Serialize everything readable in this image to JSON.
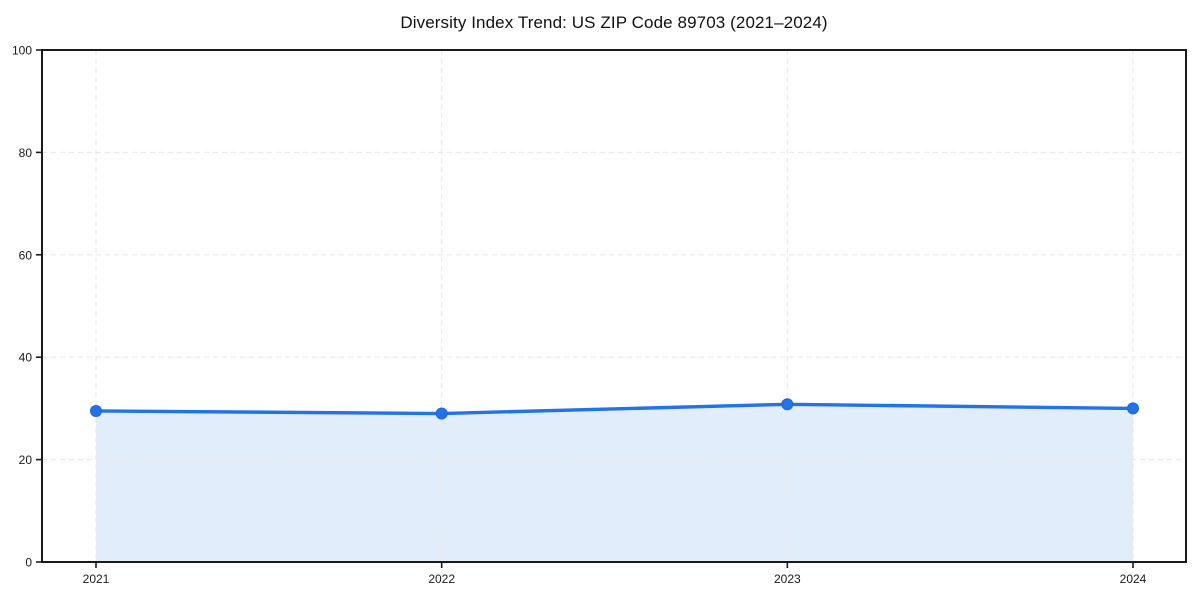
{
  "chart_data": {
    "type": "area",
    "title": "Diversity Index Trend: US ZIP Code 89703 (2021–2024)",
    "categories": [
      "2021",
      "2022",
      "2023",
      "2024"
    ],
    "series": [
      {
        "name": "Diversity Index",
        "values": [
          29.5,
          29.0,
          30.8,
          30.0
        ]
      }
    ],
    "xlabel": "",
    "ylabel": "",
    "ylim": [
      0,
      100
    ],
    "yticks": [
      0,
      20,
      40,
      60,
      80,
      100
    ],
    "grid": true,
    "grid_style": "dashed",
    "legend": false,
    "colors": {
      "line": "#2272e8",
      "marker": "#2272e8",
      "marker_edge": "#1c64d9",
      "area_fill": "rgba(34,114,232,0.13)",
      "gridline": "#e9e9e9",
      "spine": "#1a1a1a",
      "tick_label": "#1a1a1a",
      "title": "#111111",
      "plot_background": "#ffffff"
    }
  }
}
